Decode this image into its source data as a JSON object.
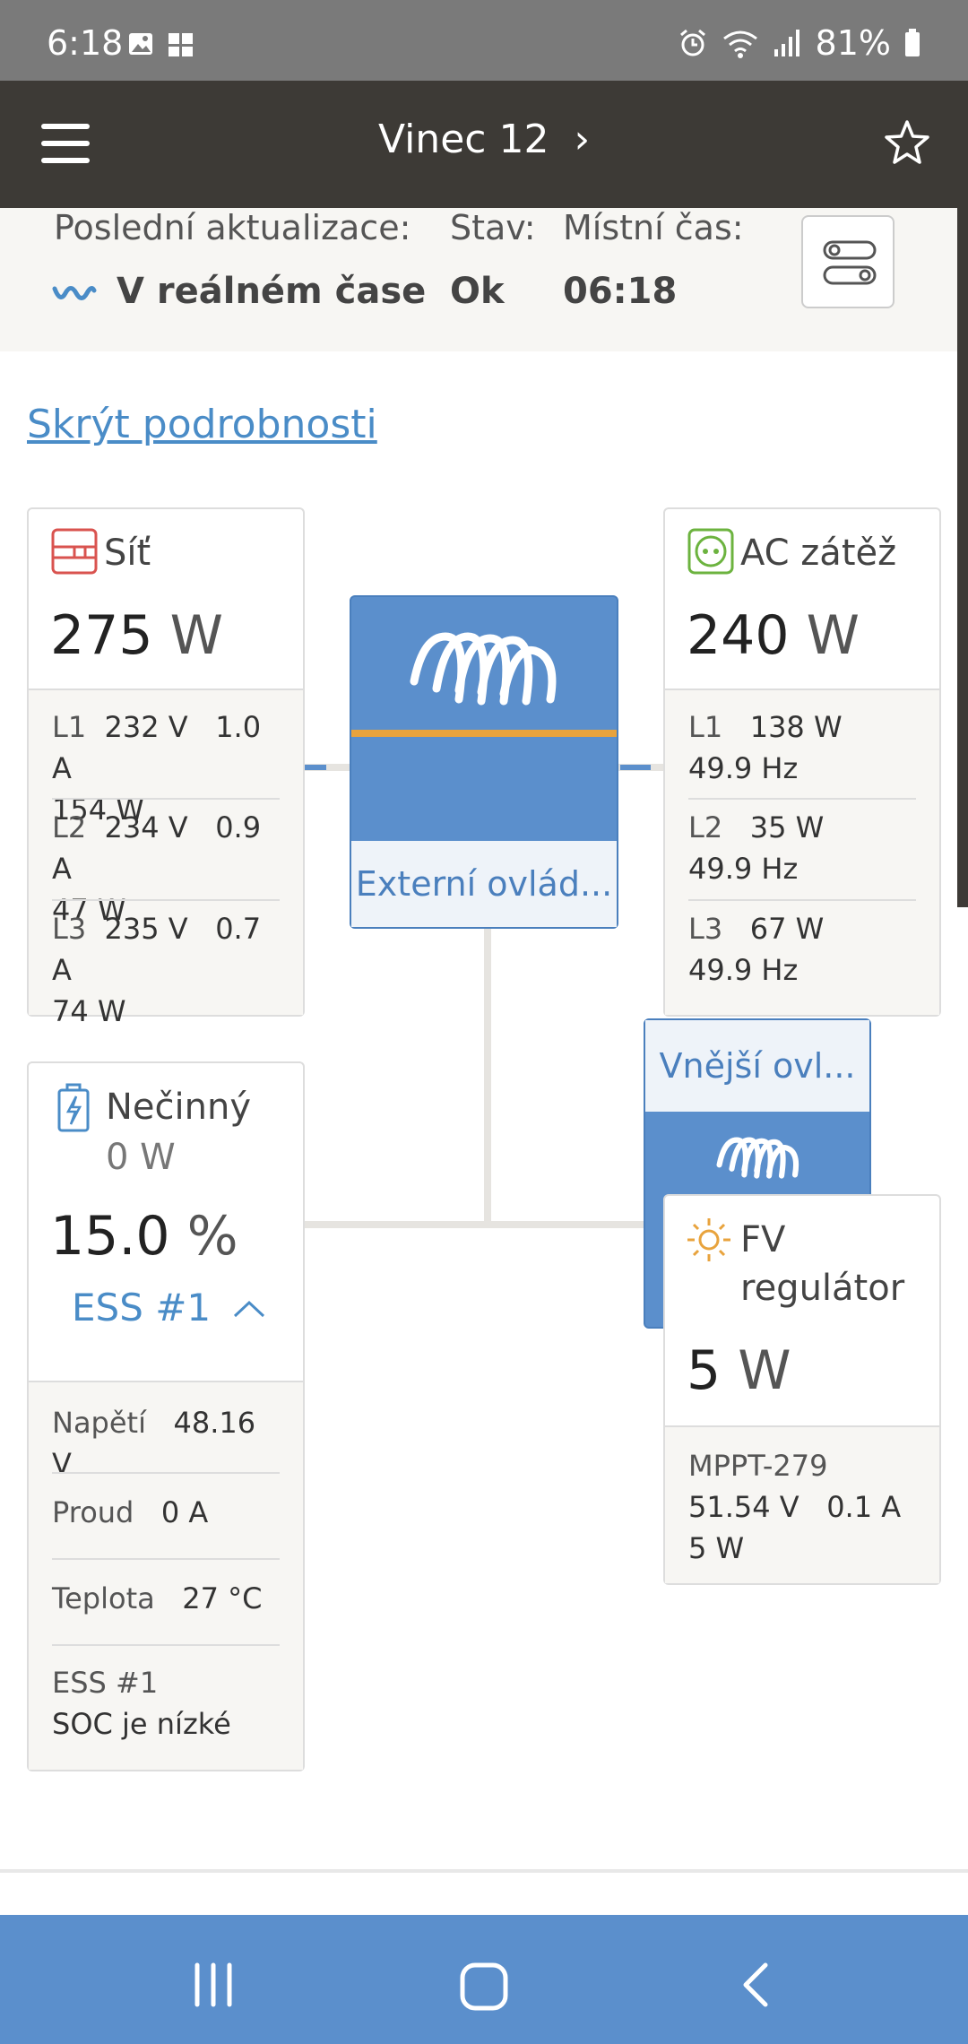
{
  "status_bar": {
    "time": "6:18",
    "battery": "81%",
    "icons": [
      "gallery-icon",
      "grid-icon",
      "alarm-icon",
      "wifi-icon",
      "signal-icon",
      "battery-icon"
    ]
  },
  "header": {
    "title": "Vinec 12",
    "title_chevron": "›",
    "icons": [
      "menu-icon",
      "star-icon"
    ]
  },
  "info": {
    "last_update_label": "Poslední aktualizace:",
    "last_update_value": "V reálném čase",
    "state_label": "Stav:",
    "state_value": "Ok",
    "local_time_label": "Místní čas:",
    "local_time_value": "06:18"
  },
  "hide_details_link": "Skrýt podrobnosti",
  "grid": {
    "title": "Síť",
    "power_value": "275",
    "power_unit": "W",
    "phases": [
      {
        "label": "L1",
        "voltage": "232 V",
        "current": "1.0 A",
        "power": "154 W"
      },
      {
        "label": "L2",
        "voltage": "234 V",
        "current": "0.9 A",
        "power": "47 W"
      },
      {
        "label": "L3",
        "voltage": "235 V",
        "current": "0.7 A",
        "power": "74 W"
      }
    ],
    "accent": "#d9534f"
  },
  "ac_load": {
    "title": "AC zátěž",
    "power_value": "240",
    "power_unit": "W",
    "phases": [
      {
        "label": "L1",
        "power": "138 W",
        "freq": "49.9 Hz"
      },
      {
        "label": "L2",
        "power": "35 W",
        "freq": "49.9 Hz"
      },
      {
        "label": "L3",
        "power": "67 W",
        "freq": "49.9 Hz"
      }
    ],
    "accent": "#6cb33f"
  },
  "inverter": {
    "label": "Externí ovlád..."
  },
  "external_control": {
    "label": "Vnější ovl..."
  },
  "battery": {
    "state": "Nečinný",
    "power": "0 W",
    "soc_value": "15.0",
    "soc_unit": "%",
    "ess": "ESS #1",
    "details": [
      {
        "key": "Napětí",
        "value": "48.16 V"
      },
      {
        "key": "Proud",
        "value": "0 A"
      },
      {
        "key": "Teplota",
        "value": "27 °C"
      }
    ],
    "ess_note_title": "ESS #1",
    "ess_note_value": "SOC je nízké"
  },
  "pv": {
    "title_line1": "FV",
    "title_line2": "regulátor",
    "power_value": "5",
    "power_unit": "W",
    "device": "MPPT-279",
    "voltage": "51.54 V",
    "current": "0.1 A",
    "power": "5 W",
    "accent": "#e8a33d"
  },
  "colors": {
    "header_bg": "#3d3a36",
    "victron_blue": "#5b8fcc",
    "link": "#4a8cc7"
  }
}
